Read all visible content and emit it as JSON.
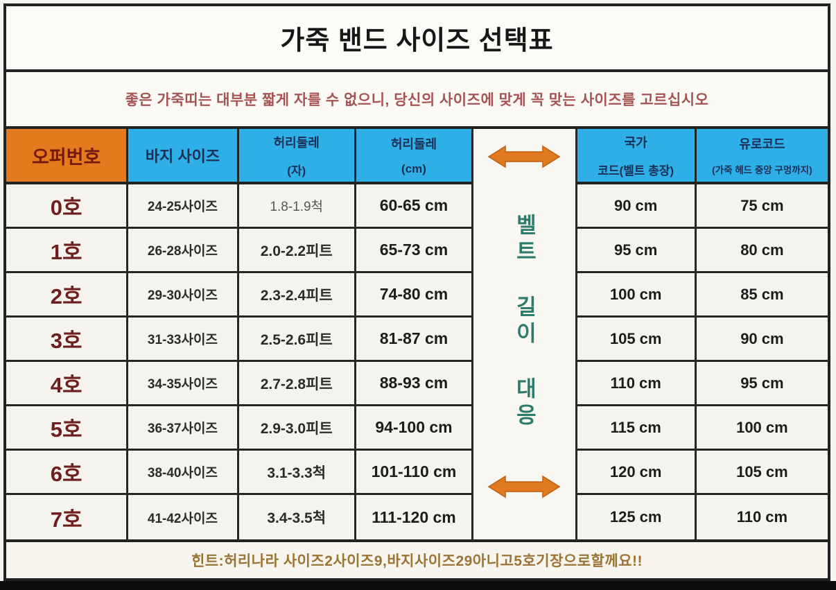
{
  "title": "가죽 밴드 사이즈 선택표",
  "subtitle": "좋은 가죽띠는 대부분 짧게 자를 수 없으니, 당신의 사이즈에 맞게 꼭 맞는 사이즈를 고르십시오",
  "table": {
    "headers": {
      "order_no": "오퍼번호",
      "pants_size": "바지 사이즈",
      "waist_ja_line1": "허리둘레",
      "waist_ja_line2": "(자)",
      "waist_cm_line1": "허리둘레",
      "waist_cm_line2": "(cm)",
      "national_line1": "국가",
      "national_line2": "코드(벨트 총장)",
      "euro_line1": "유로코드",
      "euro_line2": "(가죽 헤드 중앙 구멍까지)"
    },
    "vertical_label": [
      "벨트",
      "길이",
      "대응"
    ],
    "rows": [
      {
        "no": "0호",
        "pants": "24-25사이즈",
        "ja": "1.8-1.9척",
        "cm": "60-65 cm",
        "national": "90 cm",
        "euro": "75 cm"
      },
      {
        "no": "1호",
        "pants": "26-28사이즈",
        "ja": "2.0-2.2피트",
        "cm": "65-73 cm",
        "national": "95 cm",
        "euro": "80 cm"
      },
      {
        "no": "2호",
        "pants": "29-30사이즈",
        "ja": "2.3-2.4피트",
        "cm": "74-80 cm",
        "national": "100 cm",
        "euro": "85 cm"
      },
      {
        "no": "3호",
        "pants": "31-33사이즈",
        "ja": "2.5-2.6피트",
        "cm": "81-87 cm",
        "national": "105 cm",
        "euro": "90 cm"
      },
      {
        "no": "4호",
        "pants": "34-35사이즈",
        "ja": "2.7-2.8피트",
        "cm": "88-93 cm",
        "national": "110 cm",
        "euro": "95 cm"
      },
      {
        "no": "5호",
        "pants": "36-37사이즈",
        "ja": "2.9-3.0피트",
        "cm": "94-100 cm",
        "national": "115 cm",
        "euro": "100 cm"
      },
      {
        "no": "6호",
        "pants": "38-40사이즈",
        "ja": "3.1-3.3척",
        "cm": "101-110 cm",
        "national": "120 cm",
        "euro": "105 cm"
      },
      {
        "no": "7호",
        "pants": "41-42사이즈",
        "ja": "3.4-3.5척",
        "cm": "111-120 cm",
        "national": "125 cm",
        "euro": "110 cm"
      }
    ]
  },
  "footer_hint": "힌트:허리나라 사이즈2사이즈9,바지사이즈29아니고5호기장으로할께요!!",
  "colors": {
    "accent_orange": "#e5791e",
    "header_blue": "#2fafe8",
    "label_maroon": "#6e1e1c",
    "subtitle_red": "#a65252",
    "vertical_teal": "#2e7b6b",
    "hint_brown": "#9a7434",
    "arrow_orange": "#e07a20",
    "border_dark": "#222222"
  }
}
